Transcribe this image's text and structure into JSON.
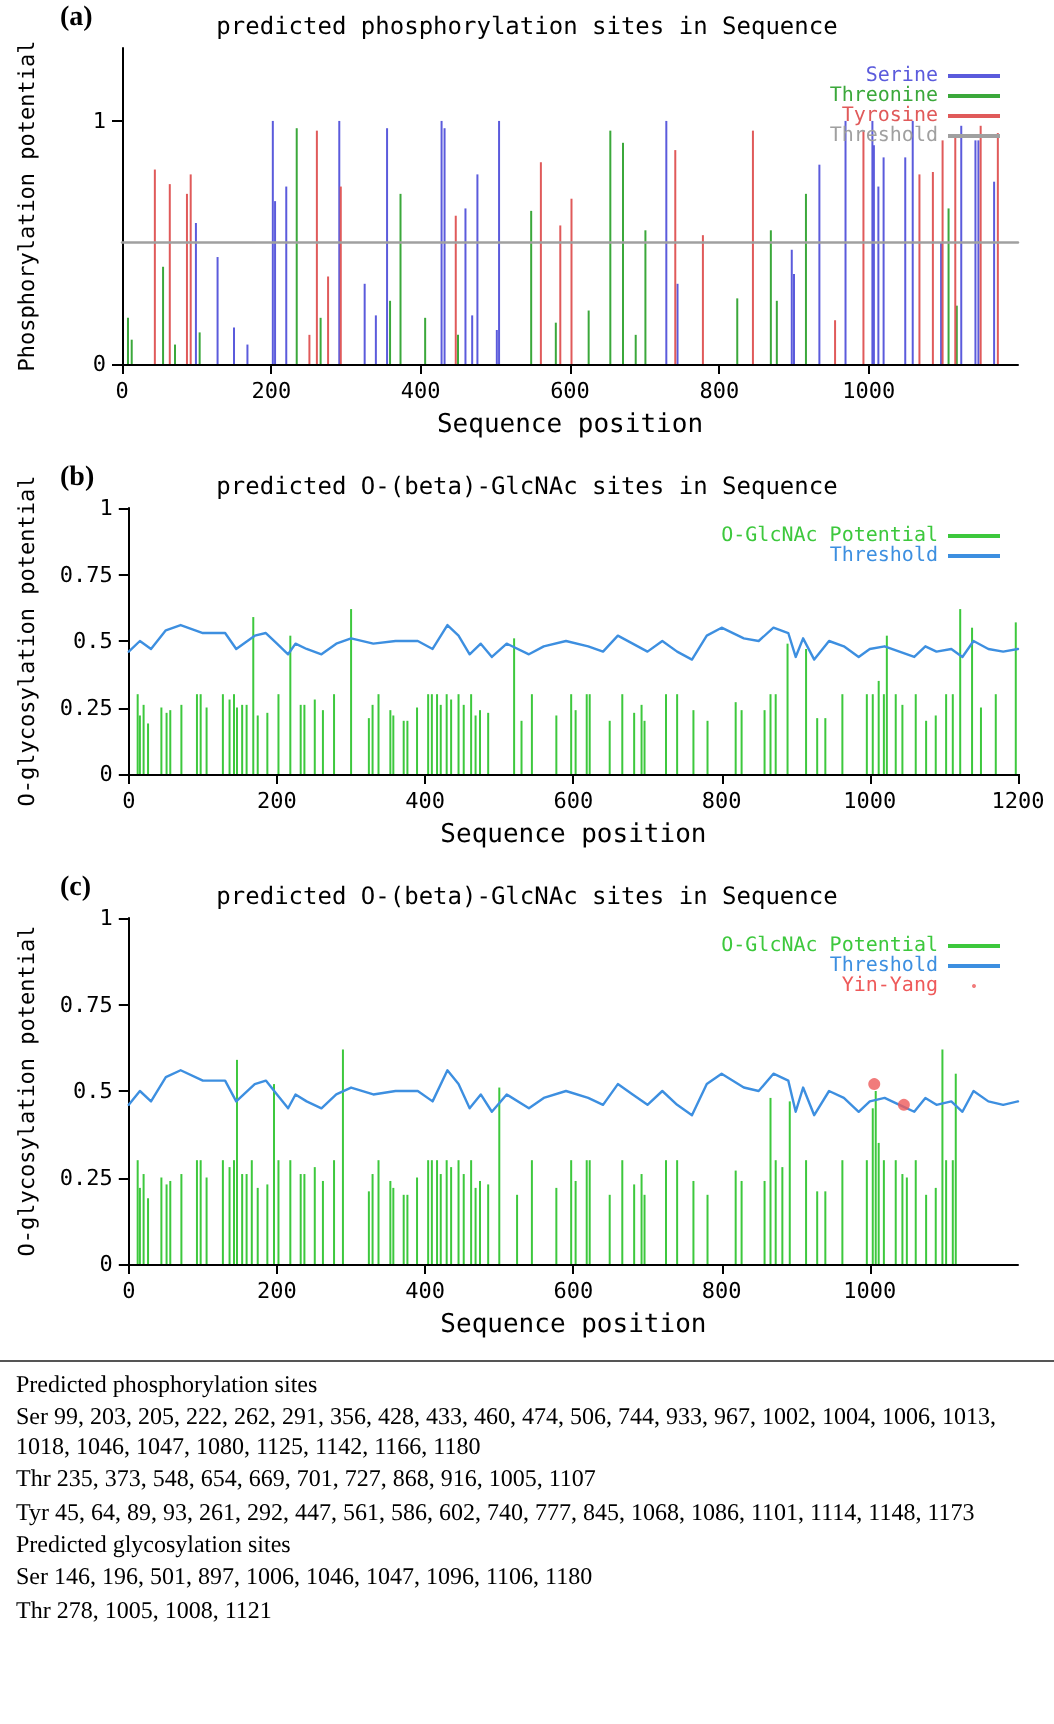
{
  "chart_data": [
    {
      "type": "bar",
      "title": "predicted phosphorylation sites in Sequence",
      "xlabel": "Sequence position",
      "ylabel": "Phosphorylation potential",
      "annotations": [
        "(a)"
      ],
      "xlim": [
        0,
        1200
      ],
      "xticks": [
        0,
        200,
        400,
        600,
        800,
        1000
      ],
      "ylim": [
        0,
        1.3
      ],
      "yticks": [
        0,
        1
      ],
      "legend": "top right",
      "series": [
        {
          "name": "Serine",
          "color": "#5b5bdc",
          "x": [
            99,
            128,
            150,
            168,
            202,
            205,
            220,
            291,
            325,
            340,
            355,
            428,
            432,
            460,
            469,
            476,
            502,
            505,
            729,
            744,
            897,
            900,
            934,
            969,
            1005,
            1007,
            1013,
            1020,
            1049,
            1059,
            1097,
            1124,
            1143,
            1147,
            1168
          ],
          "values": [
            0.58,
            0.44,
            0.15,
            0.08,
            1.0,
            0.67,
            0.73,
            1.0,
            0.33,
            0.2,
            0.97,
            1.0,
            0.97,
            0.64,
            0.2,
            0.78,
            0.14,
            1.0,
            1.0,
            0.33,
            0.47,
            0.37,
            0.82,
            1.0,
            1.0,
            0.9,
            0.73,
            0.85,
            0.85,
            1.0,
            0.5,
            0.98,
            0.92,
            0.92,
            0.75
          ]
        },
        {
          "name": "Threonine",
          "color": "#3ba83b",
          "x": [
            8,
            13,
            55,
            71,
            104,
            234,
            266,
            359,
            373,
            406,
            450,
            548,
            581,
            625,
            654,
            671,
            688,
            701,
            824,
            869,
            877,
            916,
            1107,
            1118
          ],
          "values": [
            0.19,
            0.1,
            0.4,
            0.08,
            0.13,
            0.97,
            0.19,
            0.26,
            0.7,
            0.19,
            0.12,
            0.63,
            0.17,
            0.22,
            0.96,
            0.91,
            0.12,
            0.55,
            0.27,
            0.55,
            0.26,
            0.7,
            0.64,
            0.24
          ]
        },
        {
          "name": "Tyrosine",
          "color": "#e05a5a",
          "x": [
            44,
            64,
            87,
            92,
            251,
            261,
            276,
            293,
            447,
            561,
            587,
            602,
            741,
            778,
            845,
            955,
            993,
            1068,
            1086,
            1099,
            1116,
            1150,
            1173
          ],
          "values": [
            0.8,
            0.74,
            0.7,
            0.78,
            0.12,
            0.96,
            0.36,
            0.73,
            0.61,
            0.83,
            0.57,
            0.68,
            0.88,
            0.53,
            0.96,
            0.18,
            0.96,
            0.78,
            0.79,
            0.92,
            0.93,
            0.98,
            0.95
          ]
        },
        {
          "name": "Threshold",
          "type": "line",
          "color": "#a0a0a0",
          "x": [
            0,
            1200
          ],
          "values": [
            0.5,
            0.5
          ]
        }
      ]
    },
    {
      "type": "bar",
      "title": "predicted O-(beta)-GlcNAc sites in Sequence",
      "xlabel": "Sequence position",
      "ylabel": "O-glycosylation potential",
      "annotations": [
        "(b)"
      ],
      "xlim": [
        0,
        1200
      ],
      "xticks": [
        0,
        200,
        400,
        600,
        800,
        1000,
        1200
      ],
      "ylim": [
        0,
        1
      ],
      "yticks": [
        0,
        0.25,
        0.5,
        0.75,
        1
      ],
      "legend": "top right",
      "series": [
        {
          "name": "O-GlcNAc Potential",
          "color": "#3dc83d",
          "x": [
            12,
            15,
            20,
            26,
            44,
            51,
            56,
            71,
            92,
            97,
            105,
            127,
            136,
            142,
            146,
            153,
            159,
            168,
            174,
            187,
            202,
            218,
            232,
            237,
            251,
            262,
            277,
            300,
            324,
            329,
            337,
            353,
            357,
            371,
            376,
            389,
            404,
            409,
            416,
            421,
            429,
            435,
            445,
            452,
            462,
            468,
            474,
            485,
            520,
            530,
            544,
            577,
            597,
            603,
            618,
            622,
            649,
            666,
            682,
            692,
            696,
            725,
            740,
            762,
            781,
            819,
            827,
            858,
            866,
            873,
            889,
            914,
            929,
            940,
            963,
            996,
            1004,
            1012,
            1019,
            1023,
            1035,
            1044,
            1062,
            1076,
            1089,
            1103,
            1112,
            1122,
            1138,
            1150,
            1170,
            1197
          ],
          "values": [
            0.3,
            0.22,
            0.26,
            0.19,
            0.25,
            0.23,
            0.24,
            0.26,
            0.3,
            0.3,
            0.25,
            0.3,
            0.28,
            0.3,
            0.25,
            0.26,
            0.26,
            0.59,
            0.22,
            0.23,
            0.3,
            0.52,
            0.26,
            0.26,
            0.28,
            0.24,
            0.3,
            0.62,
            0.21,
            0.26,
            0.3,
            0.24,
            0.22,
            0.2,
            0.2,
            0.25,
            0.3,
            0.3,
            0.3,
            0.26,
            0.3,
            0.28,
            0.3,
            0.26,
            0.3,
            0.22,
            0.24,
            0.23,
            0.51,
            0.2,
            0.3,
            0.22,
            0.3,
            0.24,
            0.3,
            0.3,
            0.2,
            0.3,
            0.23,
            0.26,
            0.2,
            0.3,
            0.3,
            0.24,
            0.2,
            0.27,
            0.24,
            0.24,
            0.3,
            0.3,
            0.49,
            0.47,
            0.21,
            0.21,
            0.3,
            0.3,
            0.3,
            0.35,
            0.3,
            0.52,
            0.3,
            0.26,
            0.3,
            0.2,
            0.22,
            0.3,
            0.3,
            0.62,
            0.55,
            0.25,
            0.3,
            0.57
          ]
        },
        {
          "name": "Threshold",
          "type": "line",
          "color": "#3d8fe0",
          "x": [
            0,
            15,
            30,
            50,
            70,
            100,
            130,
            145,
            170,
            185,
            200,
            215,
            225,
            240,
            260,
            280,
            300,
            330,
            360,
            390,
            410,
            430,
            445,
            460,
            475,
            490,
            510,
            540,
            560,
            590,
            620,
            640,
            660,
            680,
            700,
            720,
            740,
            760,
            780,
            800,
            830,
            850,
            870,
            890,
            900,
            910,
            925,
            945,
            965,
            985,
            1000,
            1020,
            1040,
            1060,
            1075,
            1090,
            1110,
            1125,
            1140,
            1160,
            1180,
            1200
          ],
          "values": [
            0.46,
            0.5,
            0.47,
            0.54,
            0.56,
            0.53,
            0.53,
            0.47,
            0.52,
            0.53,
            0.49,
            0.45,
            0.49,
            0.47,
            0.45,
            0.49,
            0.51,
            0.49,
            0.5,
            0.5,
            0.47,
            0.56,
            0.52,
            0.45,
            0.49,
            0.44,
            0.49,
            0.45,
            0.48,
            0.5,
            0.48,
            0.46,
            0.52,
            0.49,
            0.46,
            0.5,
            0.46,
            0.43,
            0.52,
            0.55,
            0.51,
            0.5,
            0.55,
            0.53,
            0.44,
            0.51,
            0.43,
            0.5,
            0.48,
            0.44,
            0.47,
            0.48,
            0.46,
            0.44,
            0.48,
            0.46,
            0.47,
            0.44,
            0.5,
            0.47,
            0.46,
            0.47
          ]
        }
      ]
    },
    {
      "type": "bar",
      "title": "predicted O-(beta)-GlcNAc sites in Sequence",
      "xlabel": "Sequence position",
      "ylabel": "O-glycosylation potential",
      "annotations": [
        "(c)"
      ],
      "xlim": [
        0,
        1200
      ],
      "xticks": [
        0,
        200,
        400,
        600,
        800,
        1000
      ],
      "ylim": [
        0,
        1
      ],
      "yticks": [
        0,
        0.25,
        0.5,
        0.75,
        1
      ],
      "legend": "top right",
      "series": [
        {
          "name": "O-GlcNAc Potential",
          "color": "#3dc83d",
          "x": [
            12,
            15,
            20,
            26,
            44,
            51,
            56,
            71,
            92,
            97,
            105,
            127,
            136,
            142,
            146,
            153,
            159,
            166,
            174,
            187,
            196,
            202,
            218,
            232,
            237,
            251,
            262,
            277,
            289,
            324,
            329,
            337,
            353,
            357,
            371,
            376,
            389,
            404,
            409,
            416,
            421,
            429,
            435,
            445,
            452,
            462,
            468,
            474,
            485,
            500,
            524,
            544,
            577,
            597,
            603,
            618,
            622,
            649,
            666,
            682,
            692,
            696,
            725,
            740,
            762,
            781,
            819,
            827,
            858,
            866,
            873,
            882,
            892,
            914,
            929,
            940,
            963,
            996,
            1004,
            1008,
            1012,
            1019,
            1035,
            1044,
            1050,
            1062,
            1076,
            1089,
            1098,
            1103,
            1112,
            1116
          ],
          "values": [
            0.3,
            0.22,
            0.26,
            0.19,
            0.25,
            0.23,
            0.24,
            0.26,
            0.3,
            0.3,
            0.25,
            0.3,
            0.28,
            0.3,
            0.59,
            0.26,
            0.26,
            0.3,
            0.22,
            0.23,
            0.52,
            0.3,
            0.3,
            0.26,
            0.26,
            0.28,
            0.24,
            0.3,
            0.62,
            0.21,
            0.26,
            0.3,
            0.24,
            0.22,
            0.2,
            0.2,
            0.25,
            0.3,
            0.3,
            0.3,
            0.26,
            0.3,
            0.28,
            0.3,
            0.26,
            0.3,
            0.22,
            0.24,
            0.23,
            0.51,
            0.2,
            0.3,
            0.22,
            0.3,
            0.24,
            0.3,
            0.3,
            0.2,
            0.3,
            0.23,
            0.26,
            0.2,
            0.3,
            0.3,
            0.24,
            0.2,
            0.27,
            0.24,
            0.24,
            0.48,
            0.3,
            0.28,
            0.47,
            0.3,
            0.21,
            0.21,
            0.3,
            0.3,
            0.45,
            0.5,
            0.35,
            0.3,
            0.3,
            0.26,
            0.25,
            0.3,
            0.2,
            0.22,
            0.62,
            0.3,
            0.3,
            0.55
          ]
        },
        {
          "name": "Threshold",
          "type": "line",
          "color": "#3d8fe0",
          "x": [
            0,
            15,
            30,
            50,
            70,
            100,
            130,
            145,
            170,
            185,
            200,
            215,
            225,
            240,
            260,
            280,
            300,
            330,
            360,
            390,
            410,
            430,
            445,
            460,
            475,
            490,
            510,
            540,
            560,
            590,
            620,
            640,
            660,
            680,
            700,
            720,
            740,
            760,
            780,
            800,
            830,
            850,
            870,
            890,
            900,
            910,
            925,
            945,
            965,
            985,
            1000,
            1020,
            1040,
            1060,
            1075,
            1090,
            1110,
            1125,
            1140,
            1160,
            1180,
            1200
          ],
          "values": [
            0.46,
            0.5,
            0.47,
            0.54,
            0.56,
            0.53,
            0.53,
            0.47,
            0.52,
            0.53,
            0.49,
            0.45,
            0.49,
            0.47,
            0.45,
            0.49,
            0.51,
            0.49,
            0.5,
            0.5,
            0.47,
            0.56,
            0.52,
            0.45,
            0.49,
            0.44,
            0.49,
            0.45,
            0.48,
            0.5,
            0.48,
            0.46,
            0.52,
            0.49,
            0.46,
            0.5,
            0.46,
            0.43,
            0.52,
            0.55,
            0.51,
            0.5,
            0.55,
            0.53,
            0.44,
            0.51,
            0.43,
            0.5,
            0.48,
            0.44,
            0.47,
            0.48,
            0.46,
            0.44,
            0.48,
            0.46,
            0.47,
            0.44,
            0.5,
            0.47,
            0.46,
            0.47
          ]
        },
        {
          "name": "Yin-Yang",
          "type": "scatter",
          "marker": "circle",
          "color": "#ee5a5a",
          "x": [
            1006,
            1046
          ],
          "values": [
            0.52,
            0.46
          ]
        }
      ]
    },
    {
      "type": "other",
      "annotations": [
        "Predicted phosphorylation sites",
        "Ser 99, 203, 205, 222, 262, 291, 356, 428, 433, 460, 474, 506, 744, 933, 967, 1002, 1004, 1006, 1013, 1018, 1046, 1047, 1080, 1125, 1142, 1166, 1180",
        "Thr 235, 373, 548, 654, 669, 701, 727, 868, 916, 1005, 1107",
        "Tyr 45, 64, 89, 93, 261, 292, 447, 561, 586, 602, 740, 777, 845, 1068, 1086, 1101, 1114, 1148, 1173",
        "Predicted glycosylation sites",
        "Ser 146, 196, 501, 897, 1006, 1046, 1047, 1096, 1106, 1180",
        "Thr 278, 1005, 1008, 1121"
      ]
    }
  ]
}
